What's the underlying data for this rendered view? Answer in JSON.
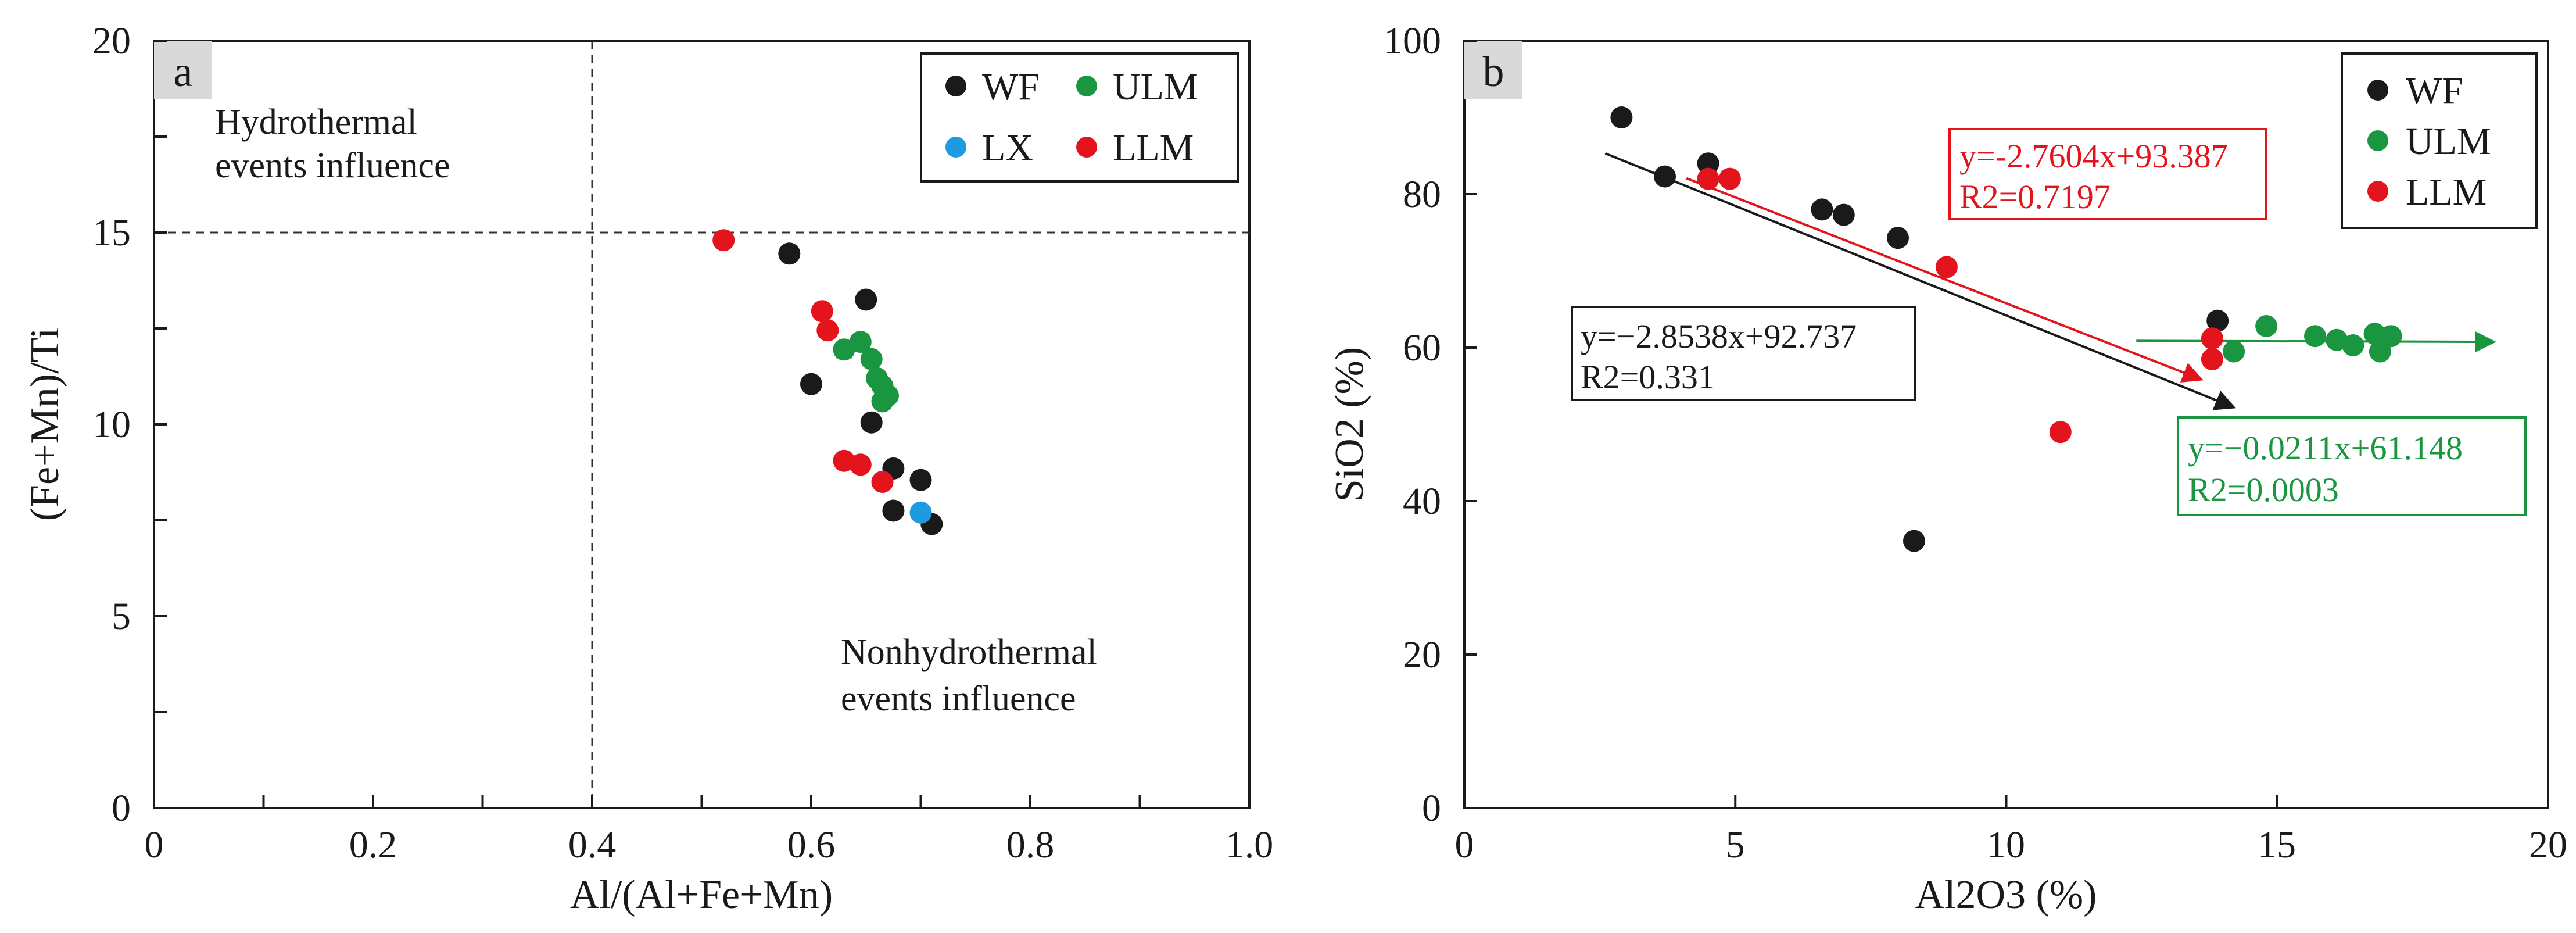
{
  "chart_data": [
    {
      "id": "a",
      "type": "scatter",
      "panel_label": "a",
      "xlabel": "Al/(Al+Fe+Mn)",
      "ylabel": "(Fe+Mn)/Ti",
      "xlim": [
        0,
        1.0
      ],
      "ylim": [
        0,
        20
      ],
      "x_ticks": [
        "0",
        "0.2",
        "0.4",
        "0.6",
        "0.8",
        "1.0"
      ],
      "y_ticks": [
        "0",
        "5",
        "10",
        "15",
        "20"
      ],
      "legend": [
        {
          "name": "WF",
          "color": "#1a1a1a"
        },
        {
          "name": "ULM",
          "color": "#1a9641"
        },
        {
          "name": "LX",
          "color": "#1e9be0"
        },
        {
          "name": "LLM",
          "color": "#e3141c"
        }
      ],
      "annotations": {
        "upper_left_line1": "Hydrothermal",
        "upper_left_line2": "events influence",
        "lower_right_line1": "Nonhydrothermal",
        "lower_right_line2": "events influence"
      },
      "reference_lines": {
        "x": 0.4,
        "y": 15
      },
      "series": [
        {
          "name": "WF",
          "color": "#1a1a1a",
          "points": [
            [
              0.58,
              14.45
            ],
            [
              0.65,
              13.25
            ],
            [
              0.6,
              11.05
            ],
            [
              0.655,
              10.05
            ],
            [
              0.675,
              8.85
            ],
            [
              0.7,
              8.55
            ],
            [
              0.675,
              7.75
            ],
            [
              0.71,
              7.4
            ]
          ]
        },
        {
          "name": "ULM",
          "color": "#1a9641",
          "points": [
            [
              0.63,
              11.95
            ],
            [
              0.645,
              12.15
            ],
            [
              0.655,
              11.7
            ],
            [
              0.66,
              11.2
            ],
            [
              0.665,
              11.0
            ],
            [
              0.67,
              10.75
            ],
            [
              0.665,
              10.6
            ]
          ]
        },
        {
          "name": "LX",
          "color": "#1e9be0",
          "points": [
            [
              0.7,
              7.7
            ]
          ]
        },
        {
          "name": "LLM",
          "color": "#e3141c",
          "points": [
            [
              0.52,
              14.8
            ],
            [
              0.61,
              12.95
            ],
            [
              0.615,
              12.45
            ],
            [
              0.63,
              9.05
            ],
            [
              0.645,
              8.95
            ],
            [
              0.665,
              8.5
            ]
          ]
        }
      ]
    },
    {
      "id": "b",
      "type": "scatter",
      "panel_label": "b",
      "xlabel": "Al2O3 (%)",
      "ylabel": "SiO2 (%)",
      "xlim": [
        0,
        20
      ],
      "ylim": [
        0,
        100
      ],
      "x_ticks": [
        "0",
        "5",
        "10",
        "15",
        "20"
      ],
      "y_ticks": [
        "0",
        "20",
        "40",
        "60",
        "80",
        "100"
      ],
      "legend": [
        {
          "name": "WF",
          "color": "#1a1a1a"
        },
        {
          "name": "ULM",
          "color": "#1a9641"
        },
        {
          "name": "LLM",
          "color": "#e3141c"
        }
      ],
      "series": [
        {
          "name": "WF",
          "color": "#1a1a1a",
          "points": [
            [
              2.9,
              90.0
            ],
            [
              3.7,
              82.3
            ],
            [
              4.5,
              84.0
            ],
            [
              6.6,
              78.0
            ],
            [
              7.0,
              77.3
            ],
            [
              8.0,
              74.3
            ],
            [
              8.3,
              34.8
            ],
            [
              13.9,
              63.5
            ]
          ]
        },
        {
          "name": "ULM",
          "color": "#1a9641",
          "points": [
            [
              14.2,
              59.5
            ],
            [
              14.8,
              62.8
            ],
            [
              15.7,
              61.5
            ],
            [
              16.1,
              61.0
            ],
            [
              16.4,
              60.3
            ],
            [
              16.8,
              61.8
            ],
            [
              16.9,
              59.5
            ],
            [
              17.1,
              61.5
            ]
          ]
        },
        {
          "name": "LLM",
          "color": "#e3141c",
          "points": [
            [
              4.5,
              82.0
            ],
            [
              4.9,
              82.0
            ],
            [
              8.9,
              70.5
            ],
            [
              11.0,
              49.0
            ],
            [
              13.8,
              61.2
            ],
            [
              13.8,
              58.5
            ]
          ]
        }
      ],
      "fits": [
        {
          "name": "WF",
          "color": "#1a1a1a",
          "equation": "y=−2.8538x+92.737",
          "r2": "R2=0.331",
          "x_range": [
            2.6,
            14.2
          ]
        },
        {
          "name": "LLM",
          "color": "#e3141c",
          "equation": "y=-2.7604x+93.387",
          "r2": "R2=0.7197",
          "x_range": [
            4.1,
            13.6
          ]
        },
        {
          "name": "ULM",
          "color": "#1a9641",
          "equation": "y=−0.0211x+61.148",
          "r2": "R2=0.0003",
          "x_range": [
            12.4,
            19.0
          ]
        }
      ]
    }
  ]
}
